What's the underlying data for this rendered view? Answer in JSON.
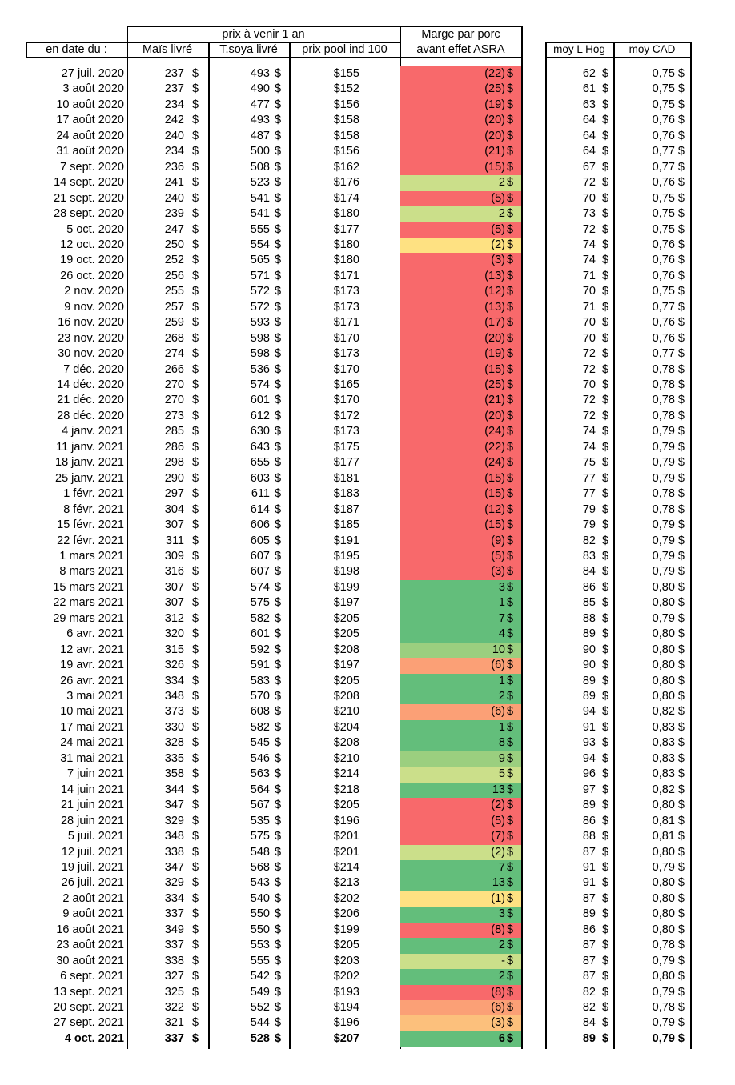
{
  "headers": {
    "group_prix": "prix à venir 1 an",
    "marge_line1": "Marge par porc",
    "marge_line2": "avant effet ASRA",
    "date": "en date du :",
    "mais": "Maïs livré",
    "soya": "T.soya livré",
    "pool": "prix pool ind 100",
    "hog": "moy L Hog",
    "cad": "moy CAD"
  },
  "currency_symbol": "$",
  "colors": {
    "red": "#f8696b",
    "green": "#63be7b",
    "light_green": "#cbdf8a",
    "mid_green": "#9bcf7f",
    "orange": "#fba076",
    "yellow": "#fee182",
    "light_orange": "#fcc07c"
  },
  "rows": [
    {
      "date": "27 juil. 2020",
      "mais": "237",
      "soya": "493",
      "pool": "$155",
      "marge": "(22)",
      "color": "red",
      "hog": "62",
      "cad": "0,75 $"
    },
    {
      "date": "3 août 2020",
      "mais": "237",
      "soya": "490",
      "pool": "$152",
      "marge": "(25)",
      "color": "red",
      "hog": "61",
      "cad": "0,75 $"
    },
    {
      "date": "10 août 2020",
      "mais": "234",
      "soya": "477",
      "pool": "$156",
      "marge": "(19)",
      "color": "red",
      "hog": "63",
      "cad": "0,75 $"
    },
    {
      "date": "17 août 2020",
      "mais": "242",
      "soya": "493",
      "pool": "$158",
      "marge": "(20)",
      "color": "red",
      "hog": "64",
      "cad": "0,76 $"
    },
    {
      "date": "24 août 2020",
      "mais": "240",
      "soya": "487",
      "pool": "$158",
      "marge": "(20)",
      "color": "red",
      "hog": "64",
      "cad": "0,76 $"
    },
    {
      "date": "31 août 2020",
      "mais": "234",
      "soya": "500",
      "pool": "$156",
      "marge": "(21)",
      "color": "red",
      "hog": "64",
      "cad": "0,77 $"
    },
    {
      "date": "7 sept. 2020",
      "mais": "236",
      "soya": "508",
      "pool": "$162",
      "marge": "(15)",
      "color": "red",
      "hog": "67",
      "cad": "0,77 $"
    },
    {
      "date": "14 sept. 2020",
      "mais": "241",
      "soya": "523",
      "pool": "$176",
      "marge": "2",
      "color": "light_green",
      "hog": "72",
      "cad": "0,76 $"
    },
    {
      "date": "21 sept. 2020",
      "mais": "240",
      "soya": "541",
      "pool": "$174",
      "marge": "(5)",
      "color": "red",
      "hog": "70",
      "cad": "0,75 $"
    },
    {
      "date": "28 sept. 2020",
      "mais": "239",
      "soya": "541",
      "pool": "$180",
      "marge": "2",
      "color": "light_green",
      "hog": "73",
      "cad": "0,75 $"
    },
    {
      "date": "5 oct. 2020",
      "mais": "247",
      "soya": "555",
      "pool": "$177",
      "marge": "(5)",
      "color": "red",
      "hog": "72",
      "cad": "0,75 $"
    },
    {
      "date": "12 oct. 2020",
      "mais": "250",
      "soya": "554",
      "pool": "$180",
      "marge": "(2)",
      "color": "yellow",
      "hog": "74",
      "cad": "0,76 $"
    },
    {
      "date": "19 oct. 2020",
      "mais": "252",
      "soya": "565",
      "pool": "$180",
      "marge": "(3)",
      "color": "red",
      "hog": "74",
      "cad": "0,76 $"
    },
    {
      "date": "26 oct. 2020",
      "mais": "256",
      "soya": "571",
      "pool": "$171",
      "marge": "(13)",
      "color": "red",
      "hog": "71",
      "cad": "0,76 $"
    },
    {
      "date": "2 nov. 2020",
      "mais": "255",
      "soya": "572",
      "pool": "$173",
      "marge": "(12)",
      "color": "red",
      "hog": "70",
      "cad": "0,75 $"
    },
    {
      "date": "9 nov. 2020",
      "mais": "257",
      "soya": "572",
      "pool": "$173",
      "marge": "(13)",
      "color": "red",
      "hog": "71",
      "cad": "0,77 $"
    },
    {
      "date": "16 nov. 2020",
      "mais": "259",
      "soya": "593",
      "pool": "$171",
      "marge": "(17)",
      "color": "red",
      "hog": "70",
      "cad": "0,76 $"
    },
    {
      "date": "23 nov. 2020",
      "mais": "268",
      "soya": "598",
      "pool": "$170",
      "marge": "(20)",
      "color": "red",
      "hog": "70",
      "cad": "0,76 $"
    },
    {
      "date": "30 nov. 2020",
      "mais": "274",
      "soya": "598",
      "pool": "$173",
      "marge": "(19)",
      "color": "red",
      "hog": "72",
      "cad": "0,77 $"
    },
    {
      "date": "7 déc. 2020",
      "mais": "266",
      "soya": "536",
      "pool": "$170",
      "marge": "(15)",
      "color": "red",
      "hog": "72",
      "cad": "0,78 $"
    },
    {
      "date": "14 déc. 2020",
      "mais": "270",
      "soya": "574",
      "pool": "$165",
      "marge": "(25)",
      "color": "red",
      "hog": "70",
      "cad": "0,78 $"
    },
    {
      "date": "21 déc. 2020",
      "mais": "270",
      "soya": "601",
      "pool": "$170",
      "marge": "(21)",
      "color": "red",
      "hog": "72",
      "cad": "0,78 $"
    },
    {
      "date": "28 déc. 2020",
      "mais": "273",
      "soya": "612",
      "pool": "$172",
      "marge": "(20)",
      "color": "red",
      "hog": "72",
      "cad": "0,78 $"
    },
    {
      "date": "4 janv. 2021",
      "mais": "285",
      "soya": "630",
      "pool": "$173",
      "marge": "(24)",
      "color": "red",
      "hog": "74",
      "cad": "0,79 $"
    },
    {
      "date": "11 janv. 2021",
      "mais": "286",
      "soya": "643",
      "pool": "$175",
      "marge": "(22)",
      "color": "red",
      "hog": "74",
      "cad": "0,79 $"
    },
    {
      "date": "18 janv. 2021",
      "mais": "298",
      "soya": "655",
      "pool": "$177",
      "marge": "(24)",
      "color": "red",
      "hog": "75",
      "cad": "0,79 $"
    },
    {
      "date": "25 janv. 2021",
      "mais": "290",
      "soya": "603",
      "pool": "$181",
      "marge": "(15)",
      "color": "red",
      "hog": "77",
      "cad": "0,79 $"
    },
    {
      "date": "1 févr. 2021",
      "mais": "297",
      "soya": "611",
      "pool": "$183",
      "marge": "(15)",
      "color": "red",
      "hog": "77",
      "cad": "0,78 $"
    },
    {
      "date": "8 févr. 2021",
      "mais": "304",
      "soya": "614",
      "pool": "$187",
      "marge": "(12)",
      "color": "red",
      "hog": "79",
      "cad": "0,78 $"
    },
    {
      "date": "15 févr. 2021",
      "mais": "307",
      "soya": "606",
      "pool": "$185",
      "marge": "(15)",
      "color": "red",
      "hog": "79",
      "cad": "0,79 $"
    },
    {
      "date": "22 févr. 2021",
      "mais": "311",
      "soya": "605",
      "pool": "$191",
      "marge": "(9)",
      "color": "red",
      "hog": "82",
      "cad": "0,79 $"
    },
    {
      "date": "1 mars 2021",
      "mais": "309",
      "soya": "607",
      "pool": "$195",
      "marge": "(5)",
      "color": "red",
      "hog": "83",
      "cad": "0,79 $"
    },
    {
      "date": "8 mars 2021",
      "mais": "316",
      "soya": "607",
      "pool": "$198",
      "marge": "(3)",
      "color": "red",
      "hog": "84",
      "cad": "0,79 $"
    },
    {
      "date": "15 mars 2021",
      "mais": "307",
      "soya": "574",
      "pool": "$199",
      "marge": "3",
      "color": "green",
      "hog": "86",
      "cad": "0,80 $"
    },
    {
      "date": "22 mars 2021",
      "mais": "307",
      "soya": "575",
      "pool": "$197",
      "marge": "1",
      "color": "green",
      "hog": "85",
      "cad": "0,80 $"
    },
    {
      "date": "29 mars 2021",
      "mais": "312",
      "soya": "582",
      "pool": "$205",
      "marge": "7",
      "color": "green",
      "hog": "88",
      "cad": "0,79 $"
    },
    {
      "date": "6 avr. 2021",
      "mais": "320",
      "soya": "601",
      "pool": "$205",
      "marge": "4",
      "color": "green",
      "hog": "89",
      "cad": "0,80 $"
    },
    {
      "date": "12 avr. 2021",
      "mais": "315",
      "soya": "592",
      "pool": "$208",
      "marge": "10",
      "color": "mid_green",
      "hog": "90",
      "cad": "0,80 $"
    },
    {
      "date": "19 avr. 2021",
      "mais": "326",
      "soya": "591",
      "pool": "$197",
      "marge": "(6)",
      "color": "orange",
      "hog": "90",
      "cad": "0,80 $"
    },
    {
      "date": "26 avr. 2021",
      "mais": "334",
      "soya": "583",
      "pool": "$205",
      "marge": "1",
      "color": "green",
      "hog": "89",
      "cad": "0,80 $"
    },
    {
      "date": "3 mai 2021",
      "mais": "348",
      "soya": "570",
      "pool": "$208",
      "marge": "2",
      "color": "green",
      "hog": "89",
      "cad": "0,80 $"
    },
    {
      "date": "10 mai 2021",
      "mais": "373",
      "soya": "608",
      "pool": "$210",
      "marge": "(6)",
      "color": "orange",
      "hog": "94",
      "cad": "0,82 $"
    },
    {
      "date": "17 mai 2021",
      "mais": "330",
      "soya": "582",
      "pool": "$204",
      "marge": "1",
      "color": "green",
      "hog": "91",
      "cad": "0,83 $"
    },
    {
      "date": "24 mai 2021",
      "mais": "328",
      "soya": "545",
      "pool": "$208",
      "marge": "8",
      "color": "green",
      "hog": "93",
      "cad": "0,83 $"
    },
    {
      "date": "31 mai 2021",
      "mais": "335",
      "soya": "546",
      "pool": "$210",
      "marge": "9",
      "color": "mid_green",
      "hog": "94",
      "cad": "0,83 $"
    },
    {
      "date": "7 juin 2021",
      "mais": "358",
      "soya": "563",
      "pool": "$214",
      "marge": "5",
      "color": "light_green",
      "hog": "96",
      "cad": "0,83 $"
    },
    {
      "date": "14 juin 2021",
      "mais": "344",
      "soya": "564",
      "pool": "$218",
      "marge": "13",
      "color": "green",
      "hog": "97",
      "cad": "0,82 $"
    },
    {
      "date": "21 juin 2021",
      "mais": "347",
      "soya": "567",
      "pool": "$205",
      "marge": "(2)",
      "color": "red",
      "hog": "89",
      "cad": "0,80 $"
    },
    {
      "date": "28 juin 2021",
      "mais": "329",
      "soya": "535",
      "pool": "$196",
      "marge": "(5)",
      "color": "red",
      "hog": "86",
      "cad": "0,81 $"
    },
    {
      "date": "5 juil. 2021",
      "mais": "348",
      "soya": "575",
      "pool": "$201",
      "marge": "(7)",
      "color": "red",
      "hog": "88",
      "cad": "0,81 $"
    },
    {
      "date": "12 juil. 2021",
      "mais": "338",
      "soya": "548",
      "pool": "$201",
      "marge": "(2)",
      "color": "light_green",
      "hog": "87",
      "cad": "0,80 $"
    },
    {
      "date": "19 juil. 2021",
      "mais": "347",
      "soya": "568",
      "pool": "$214",
      "marge": "7",
      "color": "green",
      "hog": "91",
      "cad": "0,79 $"
    },
    {
      "date": "26 juil. 2021",
      "mais": "329",
      "soya": "543",
      "pool": "$213",
      "marge": "13",
      "color": "green",
      "hog": "91",
      "cad": "0,80 $"
    },
    {
      "date": "2 août 2021",
      "mais": "334",
      "soya": "540",
      "pool": "$202",
      "marge": "(1)",
      "color": "yellow",
      "hog": "87",
      "cad": "0,80 $"
    },
    {
      "date": "9 août 2021",
      "mais": "337",
      "soya": "550",
      "pool": "$206",
      "marge": "3",
      "color": "green",
      "hog": "89",
      "cad": "0,80 $"
    },
    {
      "date": "16 août 2021",
      "mais": "349",
      "soya": "550",
      "pool": "$199",
      "marge": "(8)",
      "color": "red",
      "hog": "86",
      "cad": "0,80 $"
    },
    {
      "date": "23 août 2021",
      "mais": "337",
      "soya": "553",
      "pool": "$205",
      "marge": "2",
      "color": "green",
      "hog": "87",
      "cad": "0,78 $"
    },
    {
      "date": "30 août 2021",
      "mais": "338",
      "soya": "555",
      "pool": "$203",
      "marge": "-",
      "color": "light_green",
      "hog": "87",
      "cad": "0,79 $"
    },
    {
      "date": "6 sept. 2021",
      "mais": "327",
      "soya": "542",
      "pool": "$202",
      "marge": "2",
      "color": "green",
      "hog": "87",
      "cad": "0,80 $"
    },
    {
      "date": "13 sept. 2021",
      "mais": "325",
      "soya": "549",
      "pool": "$193",
      "marge": "(8)",
      "color": "red",
      "hog": "82",
      "cad": "0,79 $"
    },
    {
      "date": "20 sept. 2021",
      "mais": "322",
      "soya": "552",
      "pool": "$194",
      "marge": "(6)",
      "color": "orange",
      "hog": "82",
      "cad": "0,78 $"
    },
    {
      "date": "27 sept. 2021",
      "mais": "321",
      "soya": "544",
      "pool": "$196",
      "marge": "(3)",
      "color": "light_orange",
      "hog": "84",
      "cad": "0,79 $"
    },
    {
      "date": "4 oct. 2021",
      "mais": "337",
      "soya": "528",
      "pool": "$207",
      "marge": "6",
      "color": "green",
      "hog": "89",
      "cad": "0,79 $",
      "bold": true
    }
  ]
}
